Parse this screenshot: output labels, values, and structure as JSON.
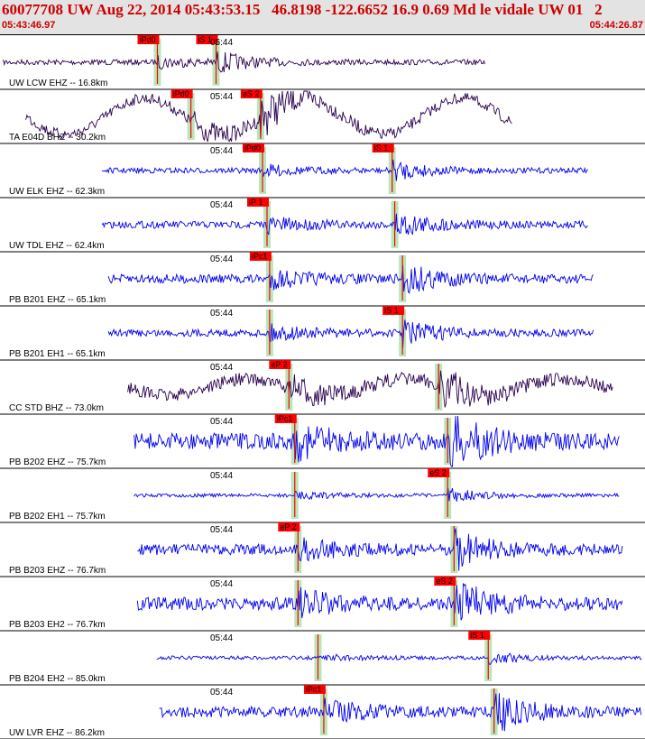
{
  "header": {
    "title": "60077708 UW Aug 22, 2014 05:43:53.15   46.8198 -122.6652 16.9 0.69 Md le vidale UW 01   2",
    "start_time": "05:43:46.97",
    "end_time": "05:44:26.87"
  },
  "colors": {
    "header_bg": "#e3e3e3",
    "header_text": "#cc0000",
    "trace_blue": "#0000ee",
    "trace_dark": "#2a0050",
    "pick_red": "#ff0000",
    "pick_window_green": "#b8e6b8",
    "separator": "#000000"
  },
  "traces": [
    {
      "label": "UW LCW EHZ -- 16.8km",
      "time_mark": "05:44",
      "color": "dark",
      "picks": [
        {
          "text": "iPd0",
          "pos": 0.244
        },
        {
          "text": "iS 1",
          "pos": 0.335
        }
      ]
    },
    {
      "label": "TA E04D BHZ -- 30.2km",
      "time_mark": "05:44",
      "color": "dark",
      "picks": [
        {
          "text": "iPd0",
          "pos": 0.296
        },
        {
          "text": "eS 2",
          "pos": 0.404
        }
      ]
    },
    {
      "label": "UW ELK EHZ -- 62.3km",
      "time_mark": "05:44",
      "color": "blue",
      "picks": [
        {
          "text": "iPd0",
          "pos": 0.407
        },
        {
          "text": "iS 1",
          "pos": 0.608
        }
      ]
    },
    {
      "label": "UW TDL EHZ -- 62.4km",
      "time_mark": "05:44",
      "color": "blue",
      "picks": [
        {
          "text": "iP 1",
          "pos": 0.414
        },
        {
          "text": "",
          "pos": 0.612
        }
      ]
    },
    {
      "label": "PB B201 EHZ -- 65.1km",
      "time_mark": "05:44",
      "color": "blue",
      "picks": [
        {
          "text": "iPc1",
          "pos": 0.418
        },
        {
          "text": "",
          "pos": 0.624
        }
      ]
    },
    {
      "label": "PB B201 EH1 -- 65.1km",
      "time_mark": "05:44",
      "color": "blue",
      "picks": [
        {
          "text": "",
          "pos": 0.418
        },
        {
          "text": "iS 1",
          "pos": 0.624
        }
      ]
    },
    {
      "label": "CC STD BHZ -- 73.0km",
      "time_mark": "05:44",
      "color": "dark",
      "picks": [
        {
          "text": "eP 2",
          "pos": 0.448
        },
        {
          "text": "",
          "pos": 0.68
        }
      ]
    },
    {
      "label": "PB B202 EHZ -- 75.7km",
      "time_mark": "05:44",
      "color": "blue",
      "picks": [
        {
          "text": "iPc1",
          "pos": 0.457
        },
        {
          "text": "",
          "pos": 0.694
        }
      ]
    },
    {
      "label": "PB B202 EH1 -- 75.7km",
      "time_mark": "05:44",
      "color": "blue",
      "picks": [
        {
          "text": "",
          "pos": 0.457
        },
        {
          "text": "eS 2",
          "pos": 0.694
        }
      ]
    },
    {
      "label": "PB B203 EHZ -- 76.7km",
      "time_mark": "05:44",
      "color": "blue",
      "picks": [
        {
          "text": "eP 2",
          "pos": 0.462
        },
        {
          "text": "",
          "pos": 0.704
        }
      ]
    },
    {
      "label": "PB B203 EH2 -- 76.7km",
      "time_mark": "05:44",
      "color": "blue",
      "picks": [
        {
          "text": "",
          "pos": 0.462
        },
        {
          "text": "eS 2",
          "pos": 0.704
        }
      ]
    },
    {
      "label": "PB B204 EH2 -- 85.0km",
      "time_mark": "05:44",
      "color": "blue",
      "picks": [
        {
          "text": "",
          "pos": 0.493
        },
        {
          "text": "iS 1",
          "pos": 0.757
        }
      ]
    },
    {
      "label": "UW LVR EHZ -- 86.2km",
      "time_mark": "05:44",
      "color": "blue",
      "picks": [
        {
          "text": "iPc1",
          "pos": 0.502
        },
        {
          "text": "",
          "pos": 0.766
        }
      ]
    }
  ]
}
